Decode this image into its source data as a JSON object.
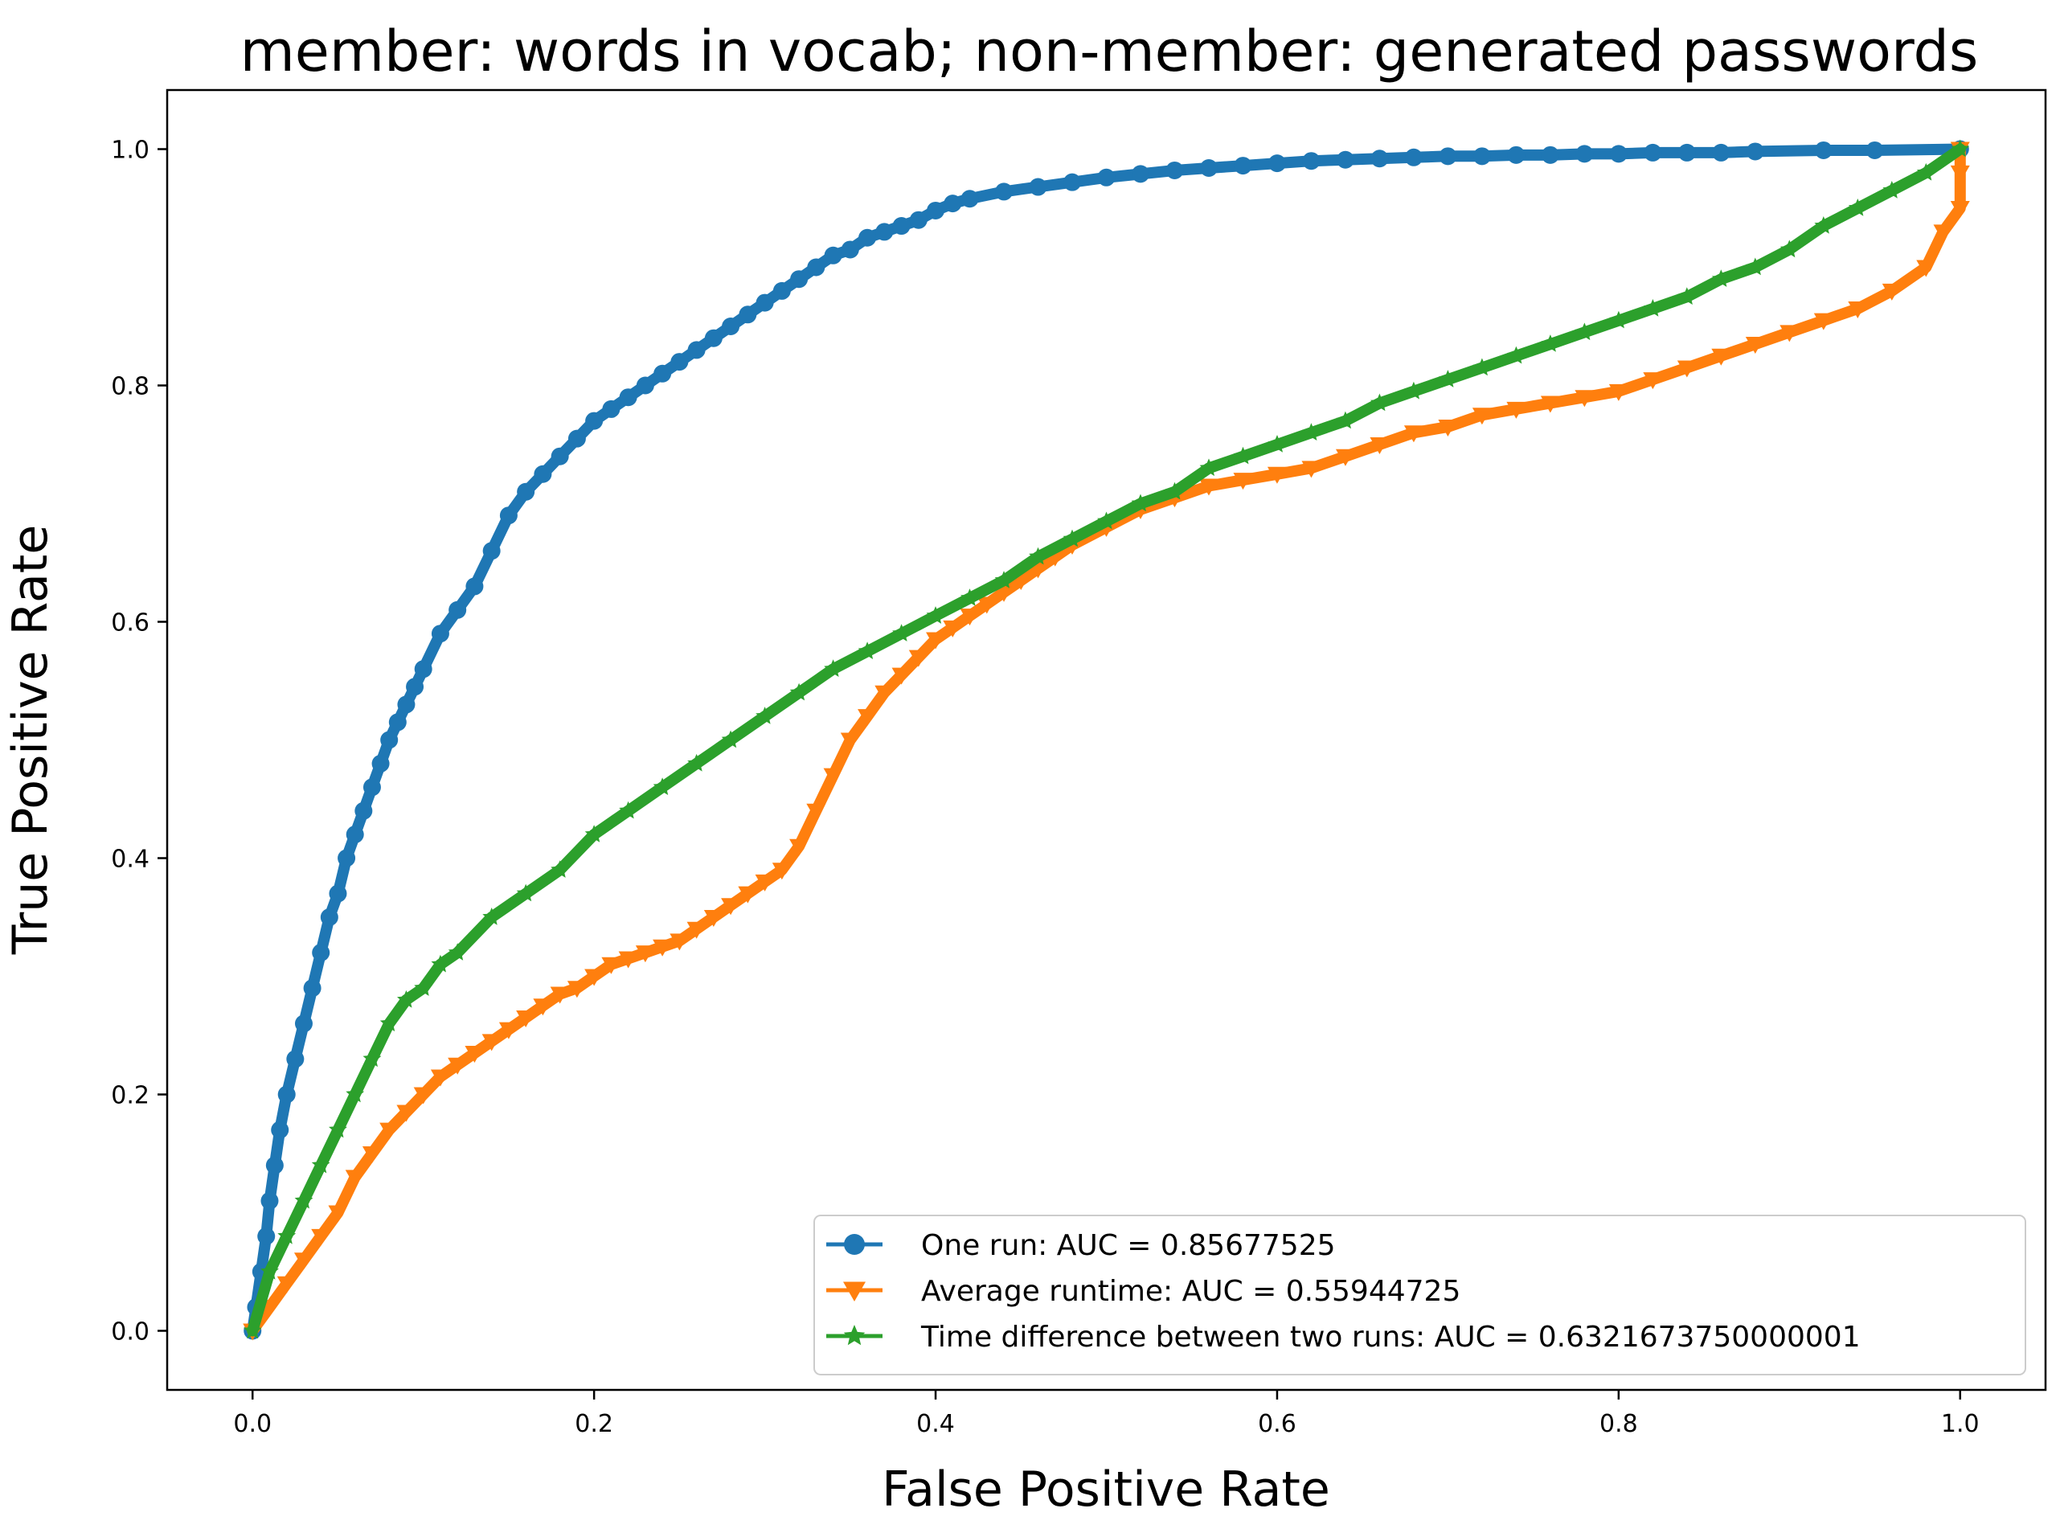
{
  "chart_data": {
    "type": "line",
    "title": "member: words in vocab; non-member: generated passwords",
    "xlabel": "False Positive Rate",
    "ylabel": "True Positive Rate",
    "xlim": [
      -0.05,
      1.05
    ],
    "ylim": [
      -0.05,
      1.05
    ],
    "xticks": [
      0.0,
      0.2,
      0.4,
      0.6,
      0.8,
      1.0
    ],
    "yticks": [
      0.0,
      0.2,
      0.4,
      0.6,
      0.8,
      1.0
    ],
    "xtick_labels": [
      "0.0",
      "0.2",
      "0.4",
      "0.6",
      "0.8",
      "1.0"
    ],
    "ytick_labels": [
      "0.0",
      "0.2",
      "0.4",
      "0.6",
      "0.8",
      "1.0"
    ],
    "grid": false,
    "legend": {
      "position": "lower-right"
    },
    "series": [
      {
        "name": "One run: AUC = 0.85677525",
        "color": "#1f77b4",
        "marker": "circle",
        "x": [
          0.0,
          0.002,
          0.005,
          0.008,
          0.01,
          0.013,
          0.016,
          0.02,
          0.025,
          0.03,
          0.035,
          0.04,
          0.045,
          0.05,
          0.055,
          0.06,
          0.065,
          0.07,
          0.075,
          0.08,
          0.085,
          0.09,
          0.095,
          0.1,
          0.11,
          0.12,
          0.13,
          0.14,
          0.15,
          0.16,
          0.17,
          0.18,
          0.19,
          0.2,
          0.21,
          0.22,
          0.23,
          0.24,
          0.25,
          0.26,
          0.27,
          0.28,
          0.29,
          0.3,
          0.31,
          0.32,
          0.33,
          0.34,
          0.35,
          0.36,
          0.37,
          0.38,
          0.39,
          0.4,
          0.41,
          0.42,
          0.44,
          0.46,
          0.48,
          0.5,
          0.52,
          0.54,
          0.56,
          0.58,
          0.6,
          0.62,
          0.64,
          0.66,
          0.68,
          0.7,
          0.72,
          0.74,
          0.76,
          0.78,
          0.8,
          0.82,
          0.84,
          0.86,
          0.88,
          0.92,
          0.95,
          1.0
        ],
        "y": [
          0.0,
          0.02,
          0.05,
          0.08,
          0.11,
          0.14,
          0.17,
          0.2,
          0.23,
          0.26,
          0.29,
          0.32,
          0.35,
          0.37,
          0.4,
          0.42,
          0.44,
          0.46,
          0.48,
          0.5,
          0.515,
          0.53,
          0.545,
          0.56,
          0.59,
          0.61,
          0.63,
          0.66,
          0.69,
          0.71,
          0.725,
          0.74,
          0.755,
          0.77,
          0.78,
          0.79,
          0.8,
          0.81,
          0.82,
          0.83,
          0.84,
          0.85,
          0.86,
          0.87,
          0.88,
          0.89,
          0.9,
          0.91,
          0.915,
          0.925,
          0.93,
          0.935,
          0.94,
          0.948,
          0.954,
          0.958,
          0.964,
          0.968,
          0.972,
          0.976,
          0.979,
          0.982,
          0.984,
          0.986,
          0.988,
          0.99,
          0.991,
          0.992,
          0.993,
          0.994,
          0.994,
          0.995,
          0.995,
          0.996,
          0.996,
          0.997,
          0.997,
          0.997,
          0.998,
          0.999,
          0.999,
          1.0
        ]
      },
      {
        "name": "Average runtime: AUC = 0.55944725",
        "color": "#ff7f0e",
        "marker": "triangle-down",
        "x": [
          0.0,
          0.01,
          0.02,
          0.03,
          0.04,
          0.05,
          0.06,
          0.07,
          0.08,
          0.09,
          0.1,
          0.11,
          0.12,
          0.13,
          0.14,
          0.15,
          0.16,
          0.17,
          0.18,
          0.19,
          0.2,
          0.21,
          0.22,
          0.23,
          0.24,
          0.25,
          0.26,
          0.27,
          0.28,
          0.29,
          0.3,
          0.31,
          0.32,
          0.33,
          0.34,
          0.35,
          0.36,
          0.37,
          0.38,
          0.39,
          0.4,
          0.41,
          0.42,
          0.43,
          0.44,
          0.45,
          0.46,
          0.47,
          0.48,
          0.5,
          0.52,
          0.54,
          0.56,
          0.58,
          0.6,
          0.62,
          0.64,
          0.66,
          0.68,
          0.7,
          0.72,
          0.74,
          0.76,
          0.78,
          0.8,
          0.82,
          0.84,
          0.86,
          0.88,
          0.9,
          0.92,
          0.94,
          0.96,
          0.98,
          0.99,
          1.0,
          1.0,
          1.0
        ],
        "y": [
          0.0,
          0.02,
          0.04,
          0.06,
          0.08,
          0.1,
          0.13,
          0.15,
          0.17,
          0.185,
          0.2,
          0.215,
          0.225,
          0.235,
          0.245,
          0.255,
          0.265,
          0.275,
          0.285,
          0.29,
          0.3,
          0.31,
          0.315,
          0.32,
          0.325,
          0.33,
          0.34,
          0.35,
          0.36,
          0.37,
          0.38,
          0.39,
          0.41,
          0.44,
          0.47,
          0.5,
          0.52,
          0.54,
          0.555,
          0.57,
          0.585,
          0.595,
          0.605,
          0.615,
          0.625,
          0.635,
          0.645,
          0.655,
          0.665,
          0.68,
          0.695,
          0.705,
          0.715,
          0.72,
          0.725,
          0.73,
          0.74,
          0.75,
          0.76,
          0.765,
          0.775,
          0.78,
          0.785,
          0.79,
          0.795,
          0.805,
          0.815,
          0.825,
          0.835,
          0.845,
          0.855,
          0.865,
          0.88,
          0.9,
          0.93,
          0.95,
          0.98,
          1.0
        ]
      },
      {
        "name": "Time difference between two runs: AUC = 0.6321673750000001",
        "color": "#2ca02c",
        "marker": "star",
        "x": [
          0.0,
          0.01,
          0.02,
          0.03,
          0.04,
          0.05,
          0.06,
          0.07,
          0.08,
          0.09,
          0.1,
          0.11,
          0.12,
          0.14,
          0.16,
          0.18,
          0.2,
          0.22,
          0.24,
          0.26,
          0.28,
          0.3,
          0.32,
          0.34,
          0.36,
          0.38,
          0.4,
          0.42,
          0.44,
          0.46,
          0.48,
          0.5,
          0.52,
          0.54,
          0.56,
          0.58,
          0.6,
          0.62,
          0.64,
          0.66,
          0.68,
          0.7,
          0.72,
          0.74,
          0.76,
          0.78,
          0.8,
          0.82,
          0.84,
          0.86,
          0.88,
          0.9,
          0.92,
          0.94,
          0.96,
          0.98,
          1.0
        ],
        "y": [
          0.0,
          0.05,
          0.08,
          0.11,
          0.14,
          0.17,
          0.2,
          0.23,
          0.26,
          0.28,
          0.29,
          0.31,
          0.32,
          0.35,
          0.37,
          0.39,
          0.42,
          0.44,
          0.46,
          0.48,
          0.5,
          0.52,
          0.54,
          0.56,
          0.575,
          0.59,
          0.605,
          0.62,
          0.635,
          0.655,
          0.67,
          0.685,
          0.7,
          0.71,
          0.73,
          0.74,
          0.75,
          0.76,
          0.77,
          0.785,
          0.795,
          0.805,
          0.815,
          0.825,
          0.835,
          0.845,
          0.855,
          0.865,
          0.875,
          0.89,
          0.9,
          0.915,
          0.935,
          0.95,
          0.965,
          0.98,
          1.0
        ]
      }
    ]
  }
}
